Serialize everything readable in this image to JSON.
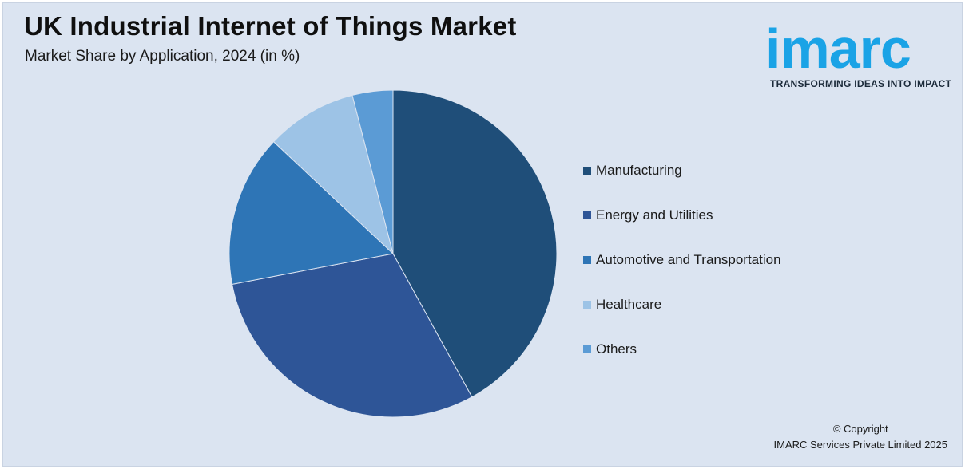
{
  "header": {
    "title": "UK Industrial Internet of Things Market",
    "subtitle": "Market Share by Application, 2024 (in %)"
  },
  "logo": {
    "word": "imarc",
    "tagline": "TRANSFORMING IDEAS INTO IMPACT",
    "color": "#1aa3e6"
  },
  "chart_data": {
    "type": "pie",
    "title": "UK Industrial Internet of Things Market",
    "subtitle": "Market Share by Application, 2024 (in %)",
    "categories": [
      "Manufacturing",
      "Energy and Utilities",
      "Automotive and Transportation",
      "Healthcare",
      "Others"
    ],
    "values": [
      42,
      30,
      15,
      9,
      4
    ],
    "colors": [
      "#1f4e79",
      "#2e5597",
      "#2e75b6",
      "#9dc3e6",
      "#5b9bd5"
    ],
    "legend_position": "right"
  },
  "footer": {
    "copyright_line1": "© Copyright",
    "copyright_line2": "IMARC Services Private Limited 2025"
  }
}
